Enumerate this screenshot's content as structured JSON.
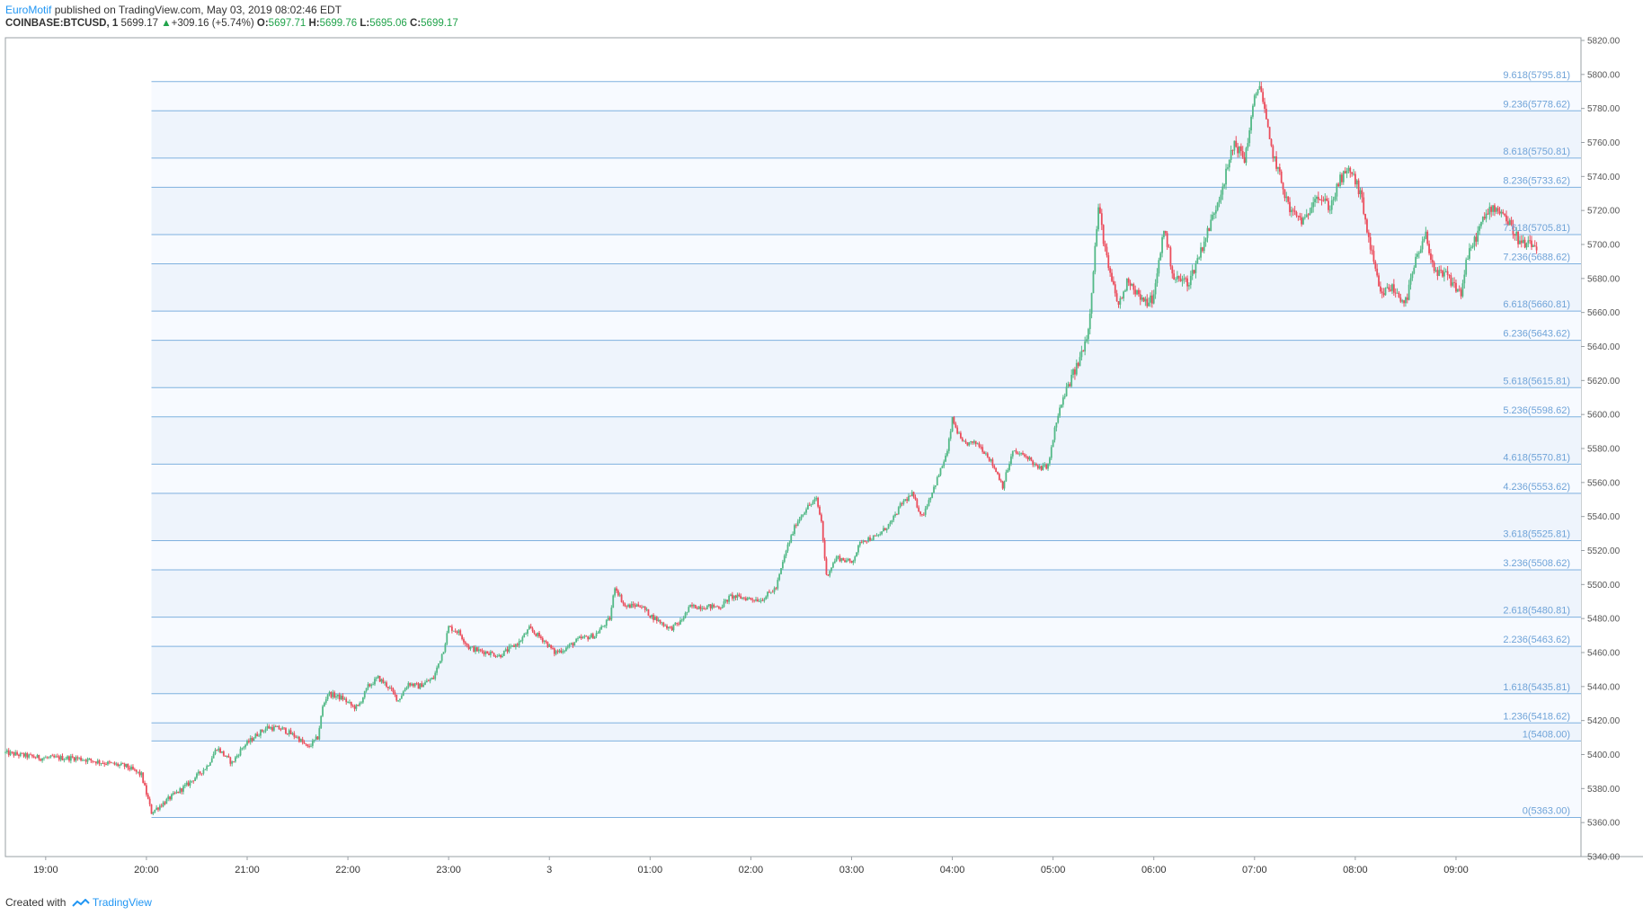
{
  "header": {
    "author": "EuroMotif",
    "published_text": "published on TradingView.com, May 03, 2019 08:02:46 EDT",
    "symbol": "COINBASE:BTCUSD, 1",
    "last": "5699.17",
    "change_arrow": "▲",
    "change": "+309.16 (+5.74%)",
    "o_label": "O:",
    "o_value": "5697.71",
    "h_label": "H:",
    "h_value": "5699.76",
    "l_label": "L:",
    "l_value": "5695.06",
    "c_label": "C:",
    "c_value": "5699.17"
  },
  "footer": {
    "created_with": "Created with",
    "brand": "TradingView"
  },
  "colors": {
    "up": "#53b987",
    "down": "#eb4d5c",
    "fib_line": "#7fb1df",
    "fib_fill": "#eef4fc",
    "axis": "#555555"
  },
  "chart_data": {
    "type": "candlestick",
    "symbol": "COINBASE:BTCUSD",
    "interval": "1",
    "y_axis": {
      "ylim": [
        5340,
        5820
      ],
      "ticks": [
        "5340.00",
        "5360.00",
        "5380.00",
        "5400.00",
        "5420.00",
        "5440.00",
        "5460.00",
        "5480.00",
        "5500.00",
        "5520.00",
        "5540.00",
        "5560.00",
        "5580.00",
        "5600.00",
        "5620.00",
        "5640.00",
        "5660.00",
        "5680.00",
        "5700.00",
        "5720.00",
        "5740.00",
        "5760.00",
        "5780.00",
        "5800.00",
        "5820.00"
      ],
      "tick_values": [
        5340,
        5360,
        5380,
        5400,
        5420,
        5440,
        5460,
        5480,
        5500,
        5520,
        5540,
        5560,
        5580,
        5600,
        5620,
        5640,
        5660,
        5680,
        5700,
        5720,
        5740,
        5760,
        5780,
        5800,
        5820
      ]
    },
    "x_axis": {
      "ticks": [
        "19:00",
        "20:00",
        "21:00",
        "22:00",
        "23:00",
        "3",
        "01:00",
        "02:00",
        "03:00",
        "04:00",
        "05:00",
        "06:00",
        "07:00",
        "08:00",
        "09:00"
      ],
      "tick_hours": [
        19,
        20,
        21,
        22,
        23,
        24,
        25,
        26,
        27,
        28,
        29,
        30,
        31,
        32,
        33
      ],
      "xlim_hours": [
        18.6,
        33.5
      ]
    },
    "fib_extension": {
      "start_hour": 20.05,
      "levels": [
        {
          "label": "0(5363.00)",
          "value": 5363.0
        },
        {
          "label": "1(5408.00)",
          "value": 5408.0
        },
        {
          "label": "1.236(5418.62)",
          "value": 5418.62
        },
        {
          "label": "1.618(5435.81)",
          "value": 5435.81
        },
        {
          "label": "2.236(5463.62)",
          "value": 5463.62
        },
        {
          "label": "2.618(5480.81)",
          "value": 5480.81
        },
        {
          "label": "3.236(5508.62)",
          "value": 5508.62
        },
        {
          "label": "3.618(5525.81)",
          "value": 5525.81
        },
        {
          "label": "4.236(5553.62)",
          "value": 5553.62
        },
        {
          "label": "4.618(5570.81)",
          "value": 5570.81
        },
        {
          "label": "5.236(5598.62)",
          "value": 5598.62
        },
        {
          "label": "5.618(5615.81)",
          "value": 5615.81
        },
        {
          "label": "6.236(5643.62)",
          "value": 5643.62
        },
        {
          "label": "6.618(5660.81)",
          "value": 5660.81
        },
        {
          "label": "7.236(5688.62)",
          "value": 5688.62
        },
        {
          "label": "7.618(5705.81)",
          "value": 5705.81
        },
        {
          "label": "8.236(5733.62)",
          "value": 5733.62
        },
        {
          "label": "8.618(5750.81)",
          "value": 5750.81
        },
        {
          "label": "9.236(5778.62)",
          "value": 5778.62
        },
        {
          "label": "9.618(5795.81)",
          "value": 5795.81
        }
      ]
    },
    "price_path": [
      [
        18.6,
        5401
      ],
      [
        18.95,
        5398
      ],
      [
        19.3,
        5398
      ],
      [
        19.5,
        5396
      ],
      [
        19.8,
        5393
      ],
      [
        19.95,
        5388
      ],
      [
        20.05,
        5366
      ],
      [
        20.2,
        5373
      ],
      [
        20.4,
        5382
      ],
      [
        20.6,
        5393
      ],
      [
        20.7,
        5404
      ],
      [
        20.85,
        5395
      ],
      [
        20.95,
        5404
      ],
      [
        21.1,
        5412
      ],
      [
        21.2,
        5416
      ],
      [
        21.35,
        5415
      ],
      [
        21.5,
        5410
      ],
      [
        21.6,
        5404
      ],
      [
        21.7,
        5410
      ],
      [
        21.75,
        5428
      ],
      [
        21.8,
        5436
      ],
      [
        21.95,
        5433
      ],
      [
        22.05,
        5428
      ],
      [
        22.1,
        5428
      ],
      [
        22.2,
        5440
      ],
      [
        22.3,
        5445
      ],
      [
        22.4,
        5440
      ],
      [
        22.5,
        5432
      ],
      [
        22.6,
        5442
      ],
      [
        22.7,
        5440
      ],
      [
        22.85,
        5445
      ],
      [
        22.95,
        5462
      ],
      [
        23.0,
        5475
      ],
      [
        23.1,
        5472
      ],
      [
        23.2,
        5463
      ],
      [
        23.3,
        5461
      ],
      [
        23.4,
        5460
      ],
      [
        23.5,
        5458
      ],
      [
        23.6,
        5462
      ],
      [
        23.7,
        5466
      ],
      [
        23.8,
        5474
      ],
      [
        23.95,
        5467
      ],
      [
        24.05,
        5460
      ],
      [
        24.15,
        5462
      ],
      [
        24.3,
        5468
      ],
      [
        24.45,
        5470
      ],
      [
        24.6,
        5480
      ],
      [
        24.65,
        5499
      ],
      [
        24.75,
        5487
      ],
      [
        24.9,
        5488
      ],
      [
        25.0,
        5482
      ],
      [
        25.1,
        5478
      ],
      [
        25.2,
        5474
      ],
      [
        25.3,
        5478
      ],
      [
        25.4,
        5487
      ],
      [
        25.55,
        5487
      ],
      [
        25.7,
        5487
      ],
      [
        25.8,
        5493
      ],
      [
        25.95,
        5492
      ],
      [
        26.1,
        5491
      ],
      [
        26.25,
        5498
      ],
      [
        26.35,
        5520
      ],
      [
        26.45,
        5536
      ],
      [
        26.55,
        5545
      ],
      [
        26.65,
        5550
      ],
      [
        26.7,
        5537
      ],
      [
        26.75,
        5505
      ],
      [
        26.85,
        5516
      ],
      [
        27.0,
        5513
      ],
      [
        27.1,
        5526
      ],
      [
        27.25,
        5528
      ],
      [
        27.4,
        5537
      ],
      [
        27.5,
        5548
      ],
      [
        27.6,
        5553
      ],
      [
        27.7,
        5540
      ],
      [
        27.85,
        5562
      ],
      [
        27.95,
        5578
      ],
      [
        28.0,
        5597
      ],
      [
        28.1,
        5583
      ],
      [
        28.25,
        5583
      ],
      [
        28.35,
        5576
      ],
      [
        28.45,
        5565
      ],
      [
        28.5,
        5558
      ],
      [
        28.6,
        5578
      ],
      [
        28.75,
        5575
      ],
      [
        28.85,
        5568
      ],
      [
        28.95,
        5570
      ],
      [
        29.05,
        5600
      ],
      [
        29.15,
        5617
      ],
      [
        29.25,
        5630
      ],
      [
        29.35,
        5650
      ],
      [
        29.45,
        5722
      ],
      [
        29.55,
        5685
      ],
      [
        29.65,
        5664
      ],
      [
        29.75,
        5680
      ],
      [
        29.9,
        5665
      ],
      [
        30.0,
        5669
      ],
      [
        30.1,
        5710
      ],
      [
        30.2,
        5680
      ],
      [
        30.35,
        5678
      ],
      [
        30.55,
        5710
      ],
      [
        30.7,
        5738
      ],
      [
        30.8,
        5760
      ],
      [
        30.9,
        5750
      ],
      [
        31.0,
        5785
      ],
      [
        31.05,
        5796
      ],
      [
        31.15,
        5760
      ],
      [
        31.25,
        5740
      ],
      [
        31.35,
        5720
      ],
      [
        31.5,
        5713
      ],
      [
        31.6,
        5730
      ],
      [
        31.75,
        5722
      ],
      [
        31.85,
        5738
      ],
      [
        31.95,
        5744
      ],
      [
        32.05,
        5730
      ],
      [
        32.15,
        5698
      ],
      [
        32.25,
        5670
      ],
      [
        32.35,
        5675
      ],
      [
        32.5,
        5666
      ],
      [
        32.6,
        5690
      ],
      [
        32.7,
        5705
      ],
      [
        32.8,
        5682
      ],
      [
        32.9,
        5682
      ],
      [
        33.05,
        5671
      ],
      [
        33.1,
        5690
      ],
      [
        33.25,
        5712
      ],
      [
        33.35,
        5722
      ],
      [
        33.45,
        5720
      ],
      [
        33.55,
        5710
      ],
      [
        33.65,
        5700
      ],
      [
        33.8,
        5699
      ]
    ],
    "notes_scale": "x in hours since midnight May 02 (24 = May 03 00:00)"
  }
}
